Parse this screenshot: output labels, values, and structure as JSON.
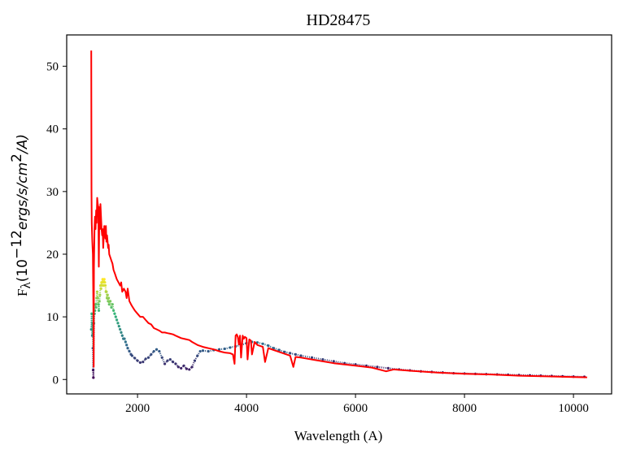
{
  "chart_data": {
    "type": "line",
    "title": "HD28475",
    "xlabel": "Wavelength (A)",
    "ylabel": "F",
    "ylabel_subscript": "λ",
    "ylabel_math": "(10",
    "ylabel_exp": "−12",
    "ylabel_units": "ergs/s/cm",
    "ylabel_units_exp": "2",
    "ylabel_units_tail": "/A)",
    "xlim": [
      700,
      10700
    ],
    "ylim": [
      -2.3,
      55
    ],
    "xticks": [
      2000,
      4000,
      6000,
      8000,
      10000
    ],
    "yticks": [
      0,
      10,
      20,
      30,
      40,
      50
    ],
    "grid": false,
    "legend": "none",
    "series": [
      {
        "style": "line",
        "color": "#ff0000",
        "x": [
          1150,
          1155,
          1160,
          1170,
          1180,
          1190,
          1195,
          1200,
          1210,
          1220,
          1230,
          1240,
          1250,
          1260,
          1270,
          1280,
          1290,
          1300,
          1310,
          1320,
          1330,
          1340,
          1350,
          1360,
          1370,
          1380,
          1390,
          1400,
          1410,
          1420,
          1430,
          1440,
          1450,
          1460,
          1470,
          1480,
          1500,
          1520,
          1540,
          1560,
          1580,
          1600,
          1620,
          1650,
          1680,
          1700,
          1720,
          1750,
          1780,
          1800,
          1820,
          1850,
          1880,
          1900,
          1950,
          2000,
          2050,
          2100,
          2150,
          2200,
          2250,
          2300,
          2350,
          2400,
          2450,
          2500,
          2550,
          2600,
          2650,
          2700,
          2750,
          2800,
          2850,
          2900,
          2950,
          3000,
          3100,
          3200,
          3300,
          3400,
          3500,
          3600,
          3700,
          3750,
          3780,
          3800,
          3820,
          3840,
          3860,
          3880,
          3900,
          3930,
          3950,
          3970,
          4000,
          4020,
          4050,
          4080,
          4100,
          4150,
          4200,
          4300,
          4340,
          4400,
          4500,
          4600,
          4800,
          4860,
          4900,
          5000,
          5200,
          5400,
          5600,
          5800,
          6000,
          6300,
          6563,
          6700,
          7000,
          7500,
          8000,
          8500,
          9000,
          9500,
          10000,
          10250
        ],
        "y": [
          52.5,
          30,
          25,
          22,
          20,
          12,
          2,
          18,
          24,
          26,
          24,
          27,
          25,
          29,
          28,
          27.5,
          18,
          27.5,
          24,
          28,
          26,
          24,
          23,
          24,
          21,
          23,
          24.5,
          24,
          22.5,
          24.5,
          22,
          23,
          22,
          21,
          21.5,
          20,
          19.5,
          19,
          18.5,
          17.5,
          17,
          16.5,
          16,
          15.5,
          15,
          15.5,
          14,
          14.5,
          14,
          13,
          14.5,
          12.5,
          12,
          11.7,
          11,
          10.5,
          10,
          10,
          9.5,
          9,
          8.8,
          8.2,
          8,
          7.8,
          7.5,
          7.5,
          7.4,
          7.3,
          7.2,
          7,
          6.8,
          6.6,
          6.5,
          6.4,
          6.3,
          6,
          5.5,
          5.2,
          5,
          4.8,
          4.5,
          4.3,
          4.2,
          4.0,
          2.5,
          7.0,
          7.2,
          6.8,
          5.6,
          7.0,
          3.5,
          7.0,
          6.5,
          6.8,
          6.6,
          3.2,
          6.4,
          6.2,
          4.0,
          6.0,
          5.5,
          5.2,
          2.8,
          5.0,
          4.7,
          4.4,
          3.8,
          2.0,
          3.6,
          3.5,
          3.2,
          2.9,
          2.6,
          2.4,
          2.2,
          1.9,
          1.3,
          1.6,
          1.4,
          1.1,
          0.9,
          0.8,
          0.6,
          0.5,
          0.4,
          0.35
        ]
      },
      {
        "style": "dots",
        "colormap": [
          "#440154",
          "#31688e",
          "#35b779",
          "#fde725"
        ],
        "x": [
          1150,
          1160,
          1170,
          1175,
          1180,
          1185,
          1190,
          1200,
          1210,
          1220,
          1230,
          1240,
          1250,
          1260,
          1270,
          1280,
          1290,
          1300,
          1310,
          1320,
          1330,
          1340,
          1350,
          1360,
          1370,
          1380,
          1390,
          1400,
          1410,
          1420,
          1430,
          1440,
          1450,
          1460,
          1470,
          1480,
          1500,
          1520,
          1540,
          1560,
          1580,
          1600,
          1620,
          1640,
          1660,
          1680,
          1700,
          1720,
          1740,
          1760,
          1780,
          1800,
          1820,
          1850,
          1880,
          1900,
          1950,
          2000,
          2050,
          2100,
          2150,
          2200,
          2250,
          2300,
          2350,
          2400,
          2450,
          2500,
          2550,
          2600,
          2650,
          2700,
          2750,
          2800,
          2850,
          2900,
          2950,
          3000,
          3050,
          3100,
          3150,
          3200,
          3300,
          3400,
          3500,
          3600,
          3700,
          3800,
          3900,
          4000,
          4100,
          4200,
          4300,
          4400,
          4500,
          4600,
          4700,
          4800,
          4900,
          5000,
          5200,
          5400,
          5600,
          5800,
          6000,
          6200,
          6400,
          6600,
          6800,
          7000,
          7200,
          7400,
          7600,
          7800,
          8000,
          8200,
          8400,
          8600,
          8800,
          9000,
          9200,
          9400,
          9600,
          9800,
          10000,
          10200
        ],
        "y": [
          8,
          10.5,
          7,
          9,
          5,
          1.5,
          0.3,
          9,
          10.5,
          11,
          12,
          11.5,
          13,
          14,
          13,
          12,
          11,
          12.5,
          13.5,
          15,
          14.5,
          15.5,
          15,
          16,
          15.5,
          15,
          16,
          15.5,
          15,
          14,
          14,
          13,
          13.5,
          12.5,
          13,
          12,
          12.5,
          11.5,
          12,
          11,
          10.5,
          10,
          9.5,
          9,
          8.5,
          8,
          7.5,
          7,
          6.5,
          6.5,
          6,
          5.5,
          5,
          4.5,
          4,
          3.8,
          3.4,
          3.0,
          2.7,
          2.8,
          3.3,
          3.5,
          4,
          4.5,
          4.8,
          4.5,
          3.5,
          2.5,
          3,
          3.2,
          2.8,
          2.5,
          2.0,
          1.8,
          2.2,
          1.7,
          1.6,
          2.0,
          3.0,
          3.8,
          4.5,
          4.6,
          4.5,
          4.7,
          4.8,
          4.9,
          5.1,
          5.3,
          5.5,
          5.8,
          6.0,
          5.9,
          5.7,
          5.4,
          5.0,
          4.7,
          4.4,
          4.2,
          4.0,
          3.8,
          3.5,
          3.2,
          2.9,
          2.6,
          2.4,
          2.2,
          2.0,
          1.8,
          1.6,
          1.45,
          1.3,
          1.2,
          1.1,
          1.0,
          0.95,
          0.9,
          0.85,
          0.8,
          0.75,
          0.7,
          0.65,
          0.6,
          0.55,
          0.5,
          0.45,
          0.42
        ]
      }
    ]
  }
}
